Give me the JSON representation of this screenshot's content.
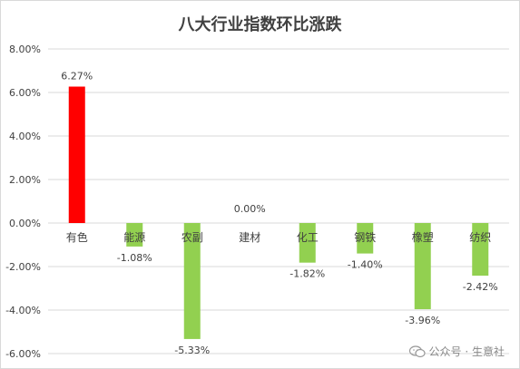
{
  "chart_data": {
    "type": "bar",
    "title": "八大行业指数环比涨跌",
    "categories": [
      "有色",
      "能源",
      "农副",
      "建材",
      "化工",
      "钢铁",
      "橡塑",
      "纺织"
    ],
    "values": [
      6.27,
      -1.08,
      -5.33,
      0.0,
      -1.82,
      -1.4,
      -3.96,
      -2.42
    ],
    "value_labels": [
      "6.27%",
      "-1.08%",
      "-5.33%",
      "0.00%",
      "-1.82%",
      "-1.40%",
      "-3.96%",
      "-2.42%"
    ],
    "ylim": [
      -6,
      8
    ],
    "yticks": [
      8,
      6,
      4,
      2,
      0,
      -2,
      -4,
      -6
    ],
    "ytick_labels": [
      "8.00%",
      "6.00%",
      "4.00%",
      "2.00%",
      "0.00%",
      "-2.00%",
      "-4.00%",
      "-6.00%"
    ],
    "colors": {
      "positive": "#ff0000",
      "negative": "#92d050",
      "grid": "#d9d9d9",
      "text": "#404040"
    },
    "grid": true,
    "legend": false
  },
  "watermark": {
    "text": "公众号 · 生意社",
    "icon": "wechat-icon"
  }
}
